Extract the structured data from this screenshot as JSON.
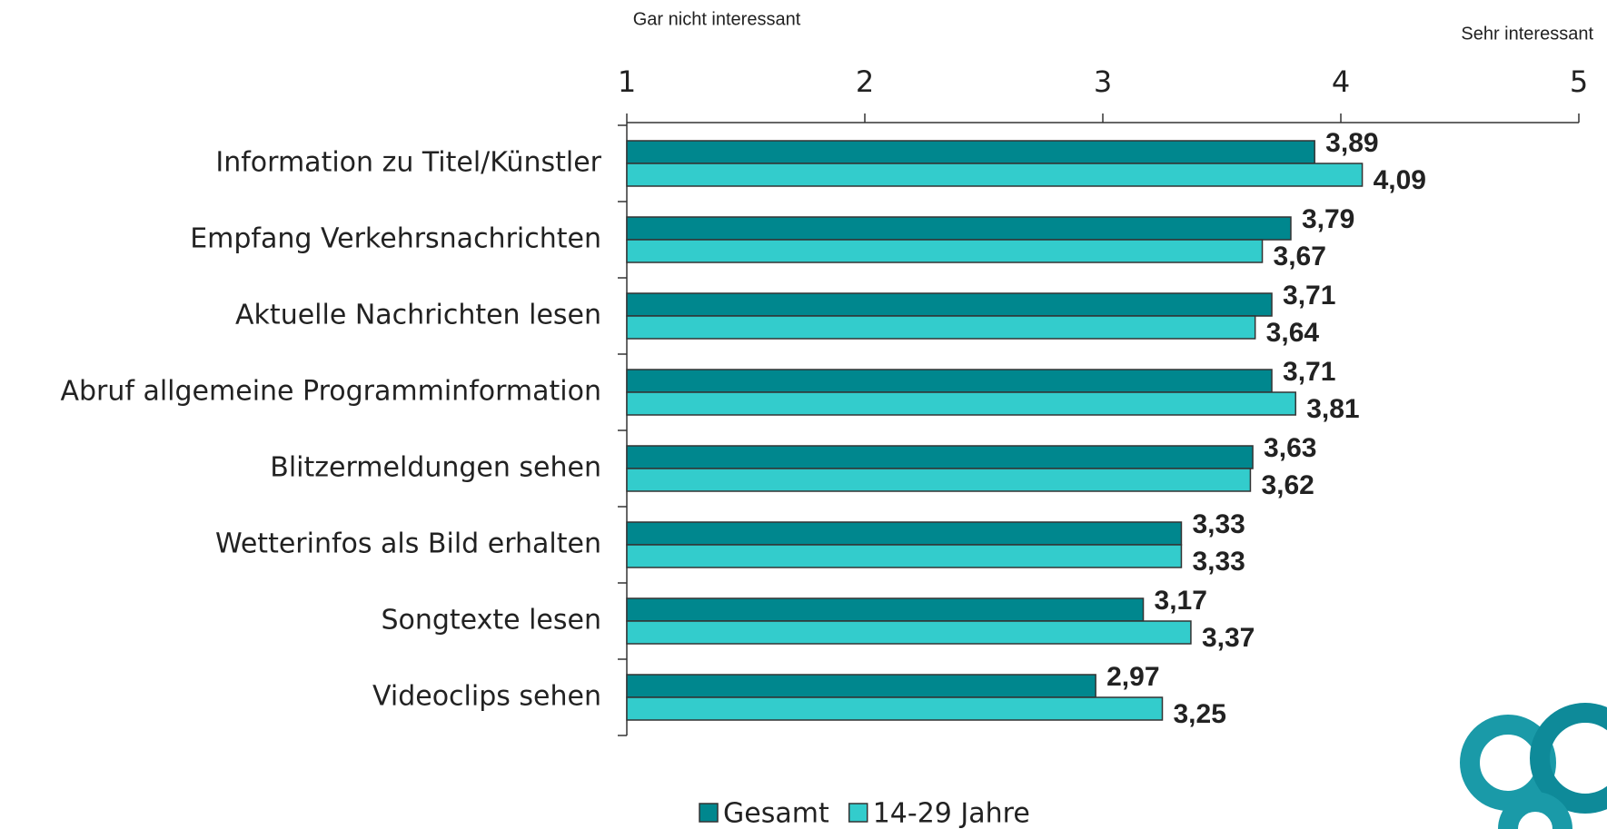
{
  "chart_data": {
    "type": "bar",
    "orientation": "horizontal",
    "annotations": [
      "Gar nicht interessant",
      "Sehr interessant"
    ],
    "categories": [
      "Information zu Titel/Künstler",
      "Empfang Verkehrsnachrichten",
      "Aktuelle Nachrichten lesen",
      "Abruf allgemeine Programminformation",
      "Blitzermeldungen sehen",
      "Wetterinfos als Bild erhalten",
      "Songtexte lesen",
      "Videoclips sehen"
    ],
    "series": [
      {
        "name": "Gesamt",
        "color": "#00878e",
        "values": [
          3.89,
          3.79,
          3.71,
          3.71,
          3.63,
          3.33,
          3.17,
          2.97
        ],
        "value_labels": [
          "3,89",
          "3,79",
          "3,71",
          "3,71",
          "3,63",
          "3,33",
          "3,17",
          "2,97"
        ]
      },
      {
        "name": "14-29 Jahre",
        "color": "#33cccc",
        "values": [
          4.09,
          3.67,
          3.64,
          3.81,
          3.62,
          3.33,
          3.37,
          3.25
        ],
        "value_labels": [
          "4,09",
          "3,67",
          "3,64",
          "3,81",
          "3,62",
          "3,33",
          "3,37",
          "3,25"
        ]
      }
    ],
    "xlim": [
      1,
      5
    ],
    "xticks": [
      1,
      2,
      3,
      4,
      5
    ],
    "legend": "bottom"
  }
}
